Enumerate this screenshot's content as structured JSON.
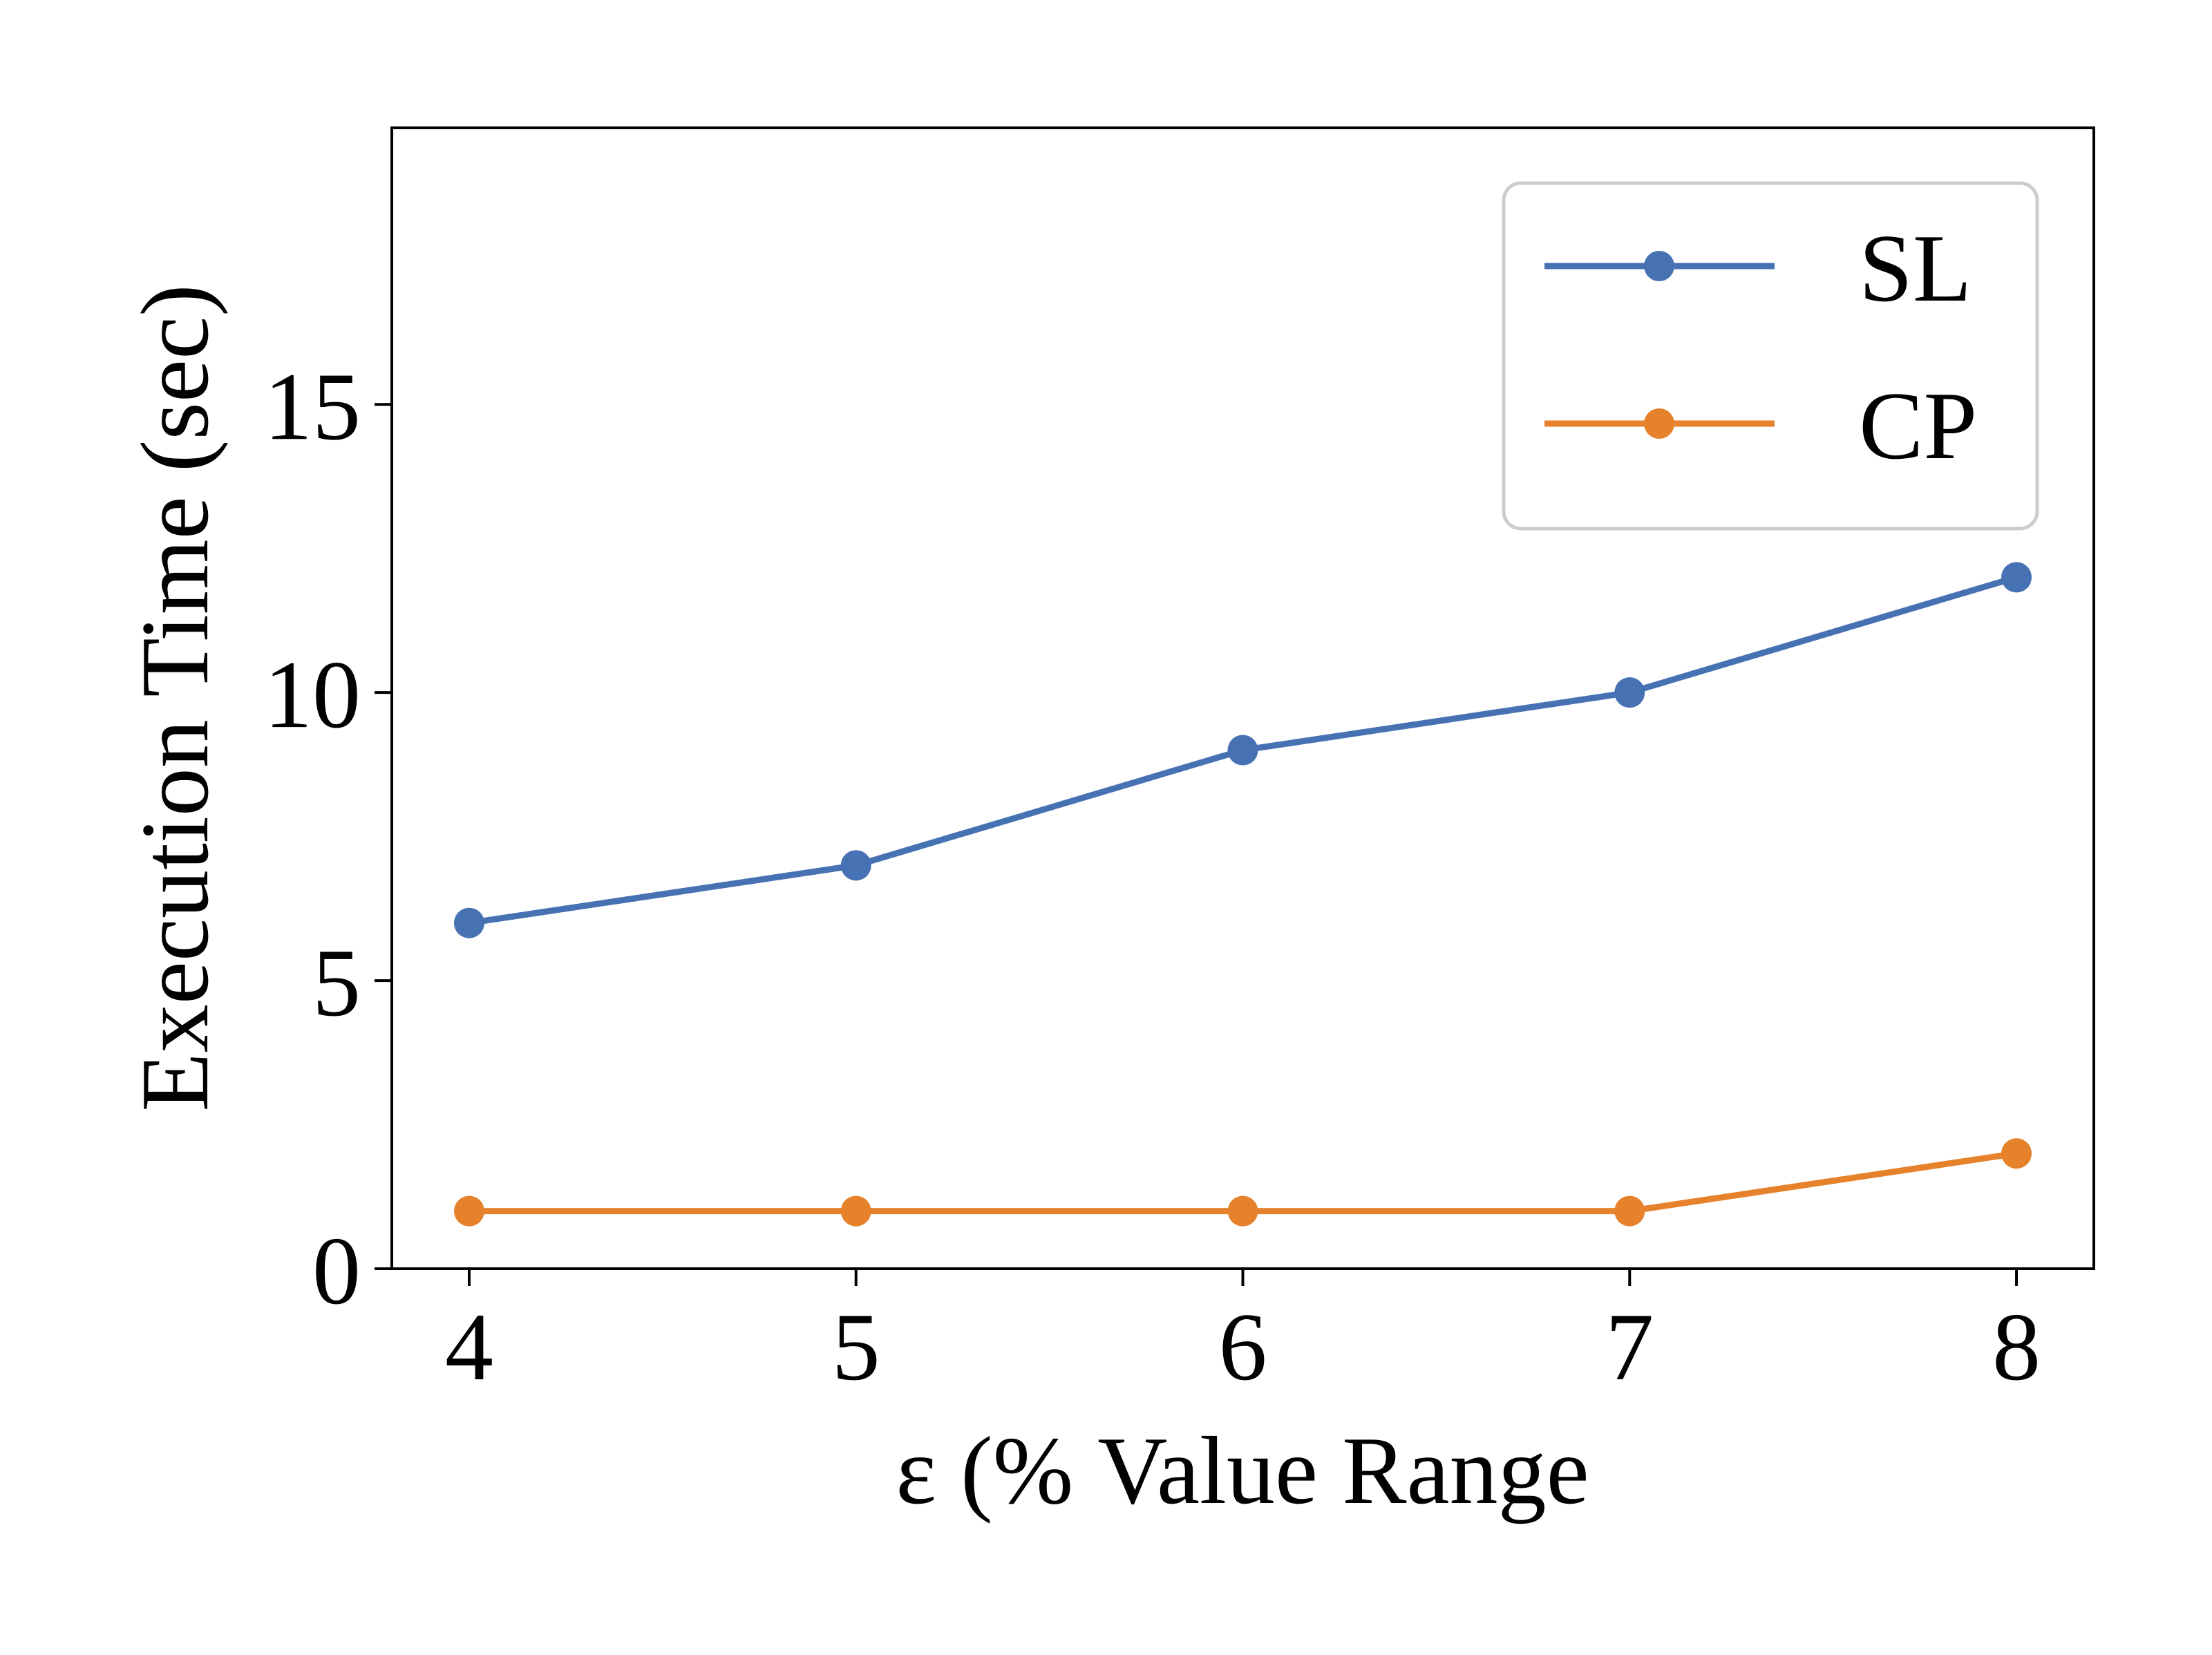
{
  "chart_data": {
    "type": "line",
    "title": "",
    "xlabel": "ε (% Value Range",
    "ylabel": "Execution Time (sec)",
    "x": [
      4,
      5,
      6,
      7,
      8
    ],
    "xlim": [
      3.8,
      8.2
    ],
    "ylim": [
      0,
      19.8
    ],
    "xticks": [
      4,
      5,
      6,
      7,
      8
    ],
    "yticks": [
      0,
      5,
      10,
      15
    ],
    "grid": false,
    "legend_position": "top-right",
    "series": [
      {
        "name": "SL",
        "color": "#4672b4",
        "values": [
          6,
          7,
          9,
          10,
          12
        ]
      },
      {
        "name": "CP",
        "color": "#e5822b",
        "values": [
          1,
          1,
          1,
          1,
          2
        ]
      }
    ]
  }
}
